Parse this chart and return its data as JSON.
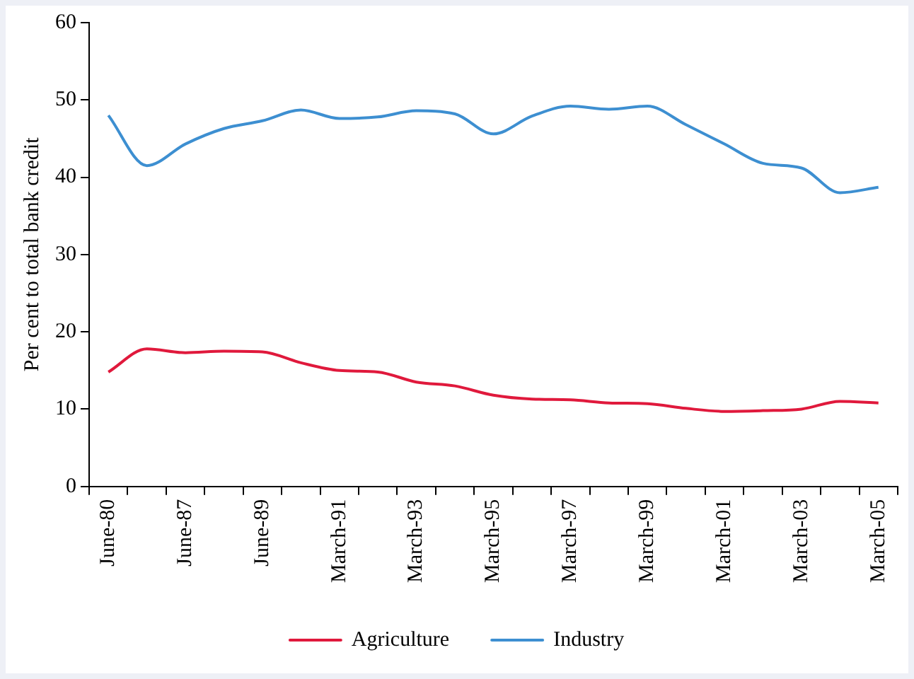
{
  "chart_data": {
    "type": "line",
    "ylabel": "Per cent to total bank credit",
    "categories": [
      "June-80",
      null,
      "June-87",
      null,
      "June-89",
      null,
      "March-91",
      null,
      "March-93",
      null,
      "March-95",
      null,
      "March-97",
      null,
      "March-99",
      null,
      "March-01",
      null,
      "March-03",
      null,
      "March-05"
    ],
    "series": [
      {
        "name": "Agriculture",
        "color": "#e0193c",
        "values": [
          14.8,
          17.8,
          17.3,
          17.5,
          17.4,
          16.0,
          15.0,
          14.8,
          13.5,
          13.0,
          11.8,
          11.3,
          11.2,
          10.8,
          10.7,
          10.1,
          9.7,
          9.8,
          10.0,
          11.0,
          10.8
        ]
      },
      {
        "name": "Industry",
        "color": "#3d8fd1",
        "values": [
          48.0,
          41.5,
          44.3,
          46.3,
          47.3,
          48.7,
          47.6,
          47.8,
          48.6,
          48.2,
          45.6,
          47.9,
          49.2,
          48.8,
          49.2,
          46.8,
          44.3,
          41.8,
          41.2,
          38.0,
          38.7
        ]
      }
    ],
    "ylim": [
      0,
      60
    ],
    "yticks": [
      0,
      10,
      20,
      30,
      40,
      50,
      60
    ],
    "grid": false,
    "legend": "bottom",
    "marker": "none",
    "line_style": "solid"
  }
}
